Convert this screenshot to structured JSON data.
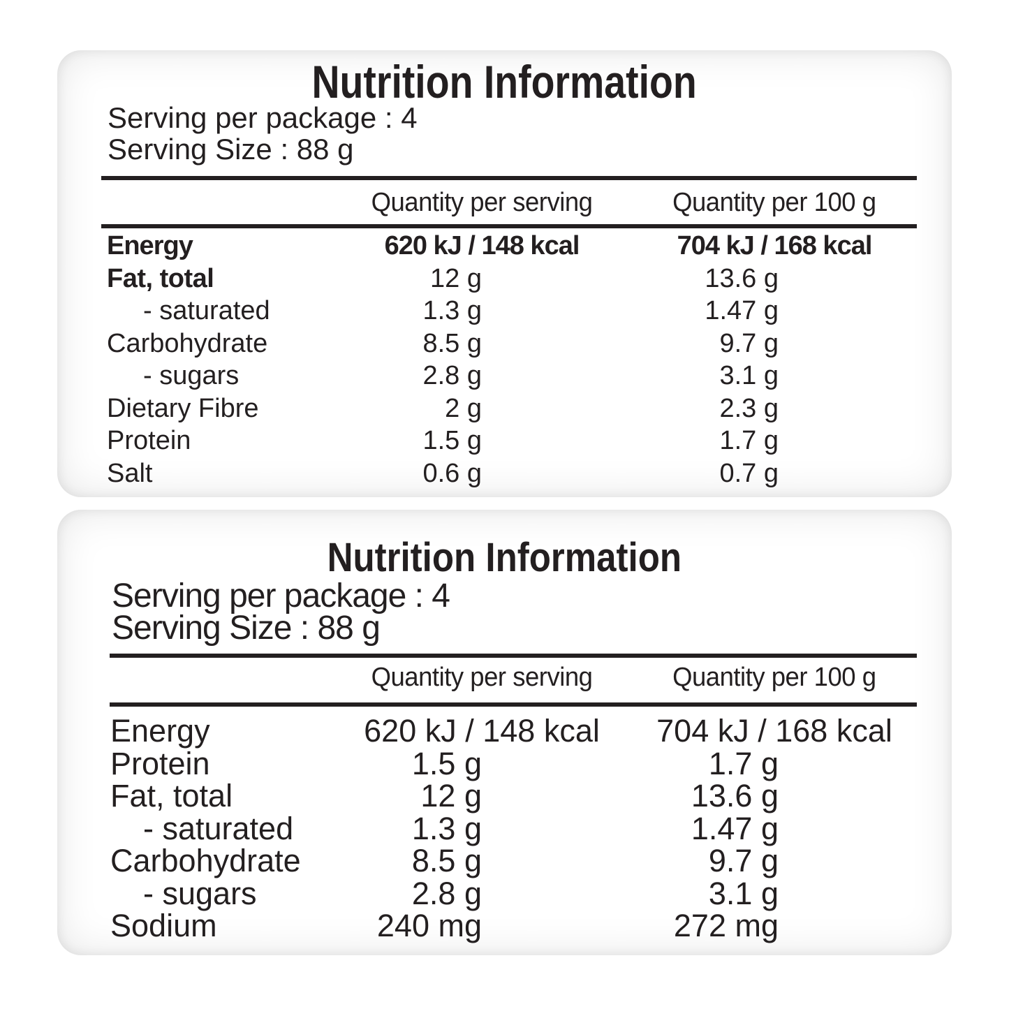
{
  "colors": {
    "text": "#231f20",
    "rule": "#231f20",
    "panel_edge_shadow": "#d9d9d9",
    "background": "#ffffff"
  },
  "panels": [
    {
      "title": "Nutrition Information",
      "serving_per_package": "Serving per package : 4",
      "serving_size": "Serving Size : 88 g",
      "columns": {
        "per_serving": "Quantity per serving",
        "per_100g": "Quantity per 100 g"
      },
      "rows": [
        {
          "label": "Energy",
          "per_serving": "620 kJ / 148 kcal",
          "per_100g": "704 kJ / 168 kcal"
        },
        {
          "label": "Fat, total",
          "per_serving": "12 g",
          "per_100g": "13.6 g"
        },
        {
          "label": "- saturated",
          "per_serving": "1.3 g",
          "per_100g": "1.47 g"
        },
        {
          "label": "Carbohydrate",
          "per_serving": "8.5 g",
          "per_100g": "9.7 g"
        },
        {
          "label": "- sugars",
          "per_serving": "2.8 g",
          "per_100g": "3.1 g"
        },
        {
          "label": "Dietary Fibre",
          "per_serving": "2 g",
          "per_100g": "2.3 g"
        },
        {
          "label": "Protein",
          "per_serving": "1.5 g",
          "per_100g": "1.7 g"
        },
        {
          "label": "Salt",
          "per_serving": "0.6 g",
          "per_100g": "0.7 g"
        }
      ]
    },
    {
      "title": "Nutrition Information",
      "serving_per_package": "Serving per package : 4",
      "serving_size": "Serving Size : 88 g",
      "columns": {
        "per_serving": "Quantity per serving",
        "per_100g": "Quantity per 100 g"
      },
      "rows": [
        {
          "label": "Energy",
          "per_serving": "620 kJ / 148 kcal",
          "per_100g": "704 kJ / 168 kcal"
        },
        {
          "label": "Protein",
          "per_serving": "1.5 g",
          "per_100g": "1.7 g"
        },
        {
          "label": "Fat, total",
          "per_serving": "12 g",
          "per_100g": "13.6 g"
        },
        {
          "label": "- saturated",
          "per_serving": "1.3 g",
          "per_100g": "1.47 g"
        },
        {
          "label": "Carbohydrate",
          "per_serving": "8.5 g",
          "per_100g": "9.7 g"
        },
        {
          "label": "- sugars",
          "per_serving": "2.8 g",
          "per_100g": "3.1 g"
        },
        {
          "label": "Sodium",
          "per_serving": "240 mg",
          "per_100g": "272 mg"
        }
      ]
    }
  ]
}
